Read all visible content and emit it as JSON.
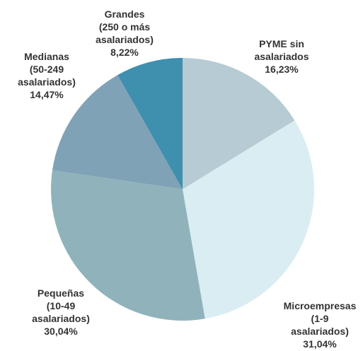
{
  "chart_data": {
    "type": "pie",
    "categories": [
      "PYME sin\nasalariados",
      "Microempresas\n(1-9 asalariados)",
      "Pequeñas\n(10-49\nasalariados)",
      "Medianas\n(50-249\nasalariados)",
      "Grandes\n(250 o más\nasalariados)"
    ],
    "values": [
      16.23,
      31.04,
      30.04,
      14.47,
      8.22
    ],
    "value_labels": [
      "16,23%",
      "31,04%",
      "30,04%",
      "14,47%",
      "8,22%"
    ],
    "colors": [
      "#b6cbd3",
      "#daedf3",
      "#90b3bb",
      "#80a2b6",
      "#3f8fae"
    ]
  }
}
